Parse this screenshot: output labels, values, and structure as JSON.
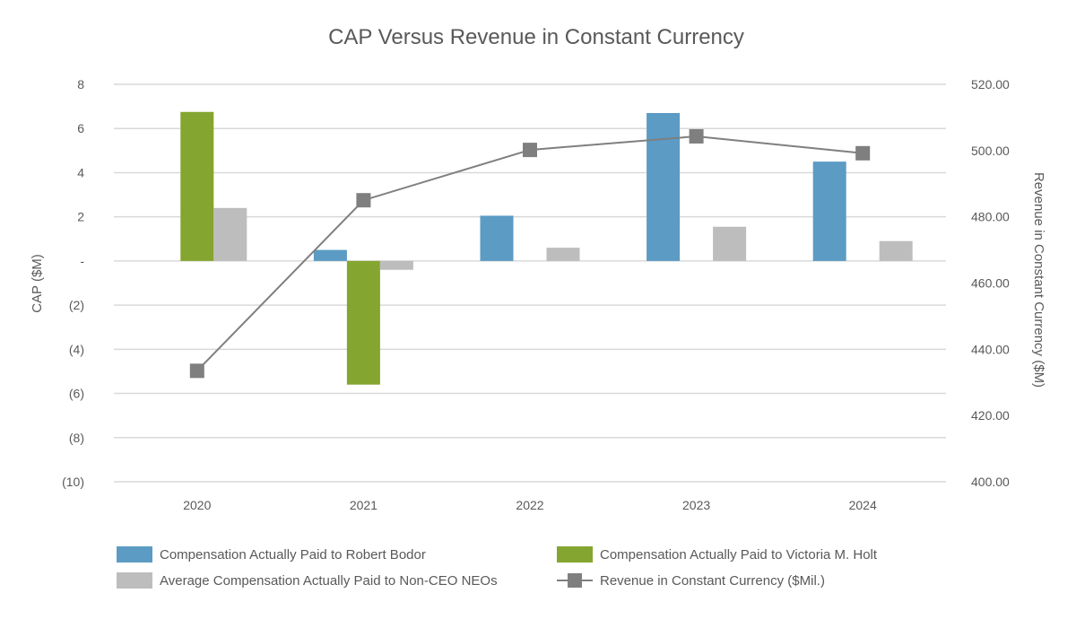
{
  "chart_data": {
    "type": "bar",
    "title": "CAP Versus Revenue in Constant Currency",
    "categories": [
      "2020",
      "2021",
      "2022",
      "2023",
      "2024"
    ],
    "ylabel": "CAP ($M)",
    "y2label": "Revenue in Constant Currency ($M)",
    "ylim": [
      -10,
      8
    ],
    "y2lim": [
      400,
      520
    ],
    "yticks": [
      8,
      6,
      4,
      2,
      0,
      -2,
      -4,
      -6,
      -8,
      -10
    ],
    "ytick_labels": [
      "8",
      "6",
      "4",
      "2",
      "-",
      "(2)",
      "(4)",
      "(6)",
      "(8)",
      "(10)"
    ],
    "y2ticks": [
      520,
      500,
      480,
      460,
      440,
      420,
      400
    ],
    "y2tick_labels": [
      "520.00",
      "500.00",
      "480.00",
      "460.00",
      "440.00",
      "420.00",
      "400.00"
    ],
    "grid": true,
    "series": [
      {
        "name": "Compensation Actually Paid to Robert Bodor",
        "kind": "bar",
        "color": "#5b9bc4",
        "values": [
          null,
          0.5,
          2.05,
          6.7,
          4.5
        ]
      },
      {
        "name": "Compensation Actually Paid to Victoria M. Holt",
        "kind": "bar",
        "color": "#84a52f",
        "values": [
          6.75,
          -5.6,
          null,
          null,
          null
        ]
      },
      {
        "name": "Average Compensation Actually Paid to Non-CEO NEOs",
        "kind": "bar",
        "color": "#bdbdbd",
        "values": [
          2.4,
          -0.4,
          0.6,
          1.55,
          0.9
        ]
      },
      {
        "name": "Revenue in Constant Currency ($Mil.)",
        "kind": "line",
        "axis": "right",
        "color": "#7f7f7f",
        "values": [
          433.5,
          485,
          500.2,
          504.3,
          499.2
        ]
      }
    ],
    "legend_position": "bottom"
  }
}
